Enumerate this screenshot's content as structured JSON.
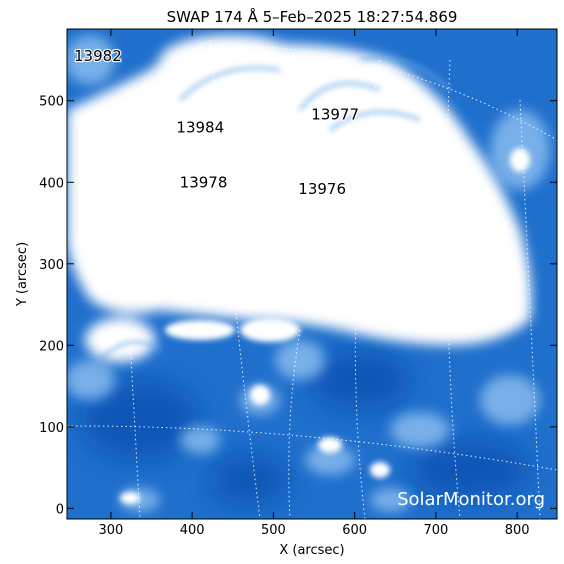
{
  "title": "SWAP 174 Å  5–Feb–2025 18:27:54.869",
  "watermark": "SolarMonitor.org",
  "axes": {
    "xlabel": "X (arcsec)",
    "ylabel": "Y (arcsec)",
    "xticks": [
      300,
      400,
      500,
      600,
      700,
      800
    ],
    "yticks": [
      0,
      100,
      200,
      300,
      400,
      500
    ],
    "xlim": [
      246,
      849
    ],
    "ylim": [
      -13,
      588
    ]
  },
  "active_regions": [
    {
      "id": "13982",
      "x": 284,
      "y": 555
    },
    {
      "id": "13984",
      "x": 410,
      "y": 467
    },
    {
      "id": "13977",
      "x": 576,
      "y": 483
    },
    {
      "id": "13978",
      "x": 414,
      "y": 400
    },
    {
      "id": "13976",
      "x": 560,
      "y": 392
    }
  ],
  "colors": {
    "image_blue": "#1a66c8",
    "image_bright": "#ffffff"
  }
}
